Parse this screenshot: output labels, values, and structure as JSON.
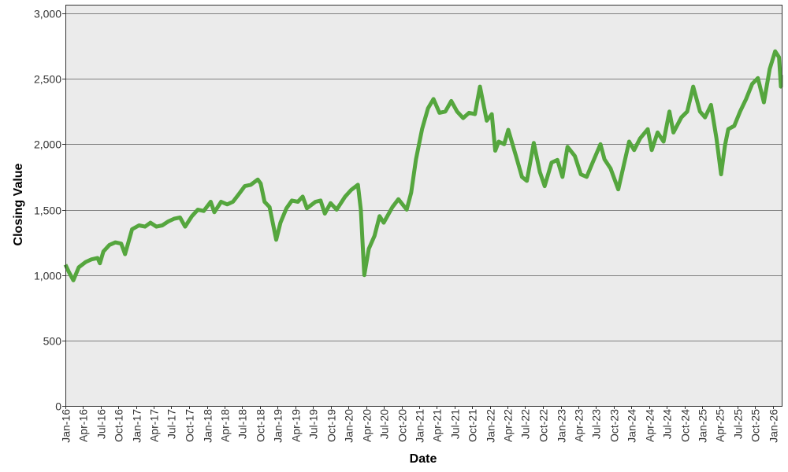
{
  "chart_data": {
    "type": "line",
    "xlabel": "Date",
    "ylabel": "Closing Value",
    "ylim": [
      0,
      3000
    ],
    "xlim": [
      "2016-01-01",
      "2026-03-01"
    ],
    "y_ticks": [
      0,
      500,
      1000,
      1500,
      2000,
      2500,
      3000
    ],
    "y_tick_labels": [
      "0",
      "500",
      "1,000",
      "1,500",
      "2,000",
      "2,500",
      "3,000"
    ],
    "x_ticks": [
      "2016-01-01",
      "2016-04-01",
      "2016-07-01",
      "2016-10-01",
      "2017-01-01",
      "2017-04-01",
      "2017-07-01",
      "2017-10-01",
      "2018-01-01",
      "2018-04-01",
      "2018-07-01",
      "2018-10-01",
      "2019-01-01",
      "2019-04-01",
      "2019-07-01",
      "2019-10-01",
      "2020-01-01",
      "2020-04-01",
      "2020-07-01",
      "2020-10-01",
      "2021-01-01",
      "2021-04-01",
      "2021-07-01",
      "2021-10-01",
      "2022-01-01",
      "2022-04-01",
      "2022-07-01",
      "2022-10-01",
      "2023-01-01",
      "2023-04-01",
      "2023-07-01",
      "2023-10-01",
      "2024-01-01",
      "2024-04-01",
      "2024-07-01",
      "2024-10-01",
      "2025-01-01",
      "2025-04-01",
      "2025-07-01",
      "2025-10-01",
      "2026-01-01"
    ],
    "x_tick_labels": [
      "Jan-16",
      "Apr-16",
      "Jul-16",
      "Oct-16",
      "Jan-17",
      "Apr-17",
      "Jul-17",
      "Oct-17",
      "Jan-18",
      "Apr-18",
      "Jul-18",
      "Oct-18",
      "Jan-19",
      "Apr-19",
      "Jul-19",
      "Oct-19",
      "Jan-20",
      "Apr-20",
      "Jul-20",
      "Oct-20",
      "Jan-21",
      "Apr-21",
      "Jul-21",
      "Oct-21",
      "Jan-22",
      "Apr-22",
      "Jul-22",
      "Oct-22",
      "Jan-23",
      "Apr-23",
      "Jul-23",
      "Oct-23",
      "Jan-24",
      "Apr-24",
      "Jul-24",
      "Oct-24",
      "Jan-25",
      "Apr-25",
      "Jul-25",
      "Oct-25",
      "Jan-26"
    ],
    "grid": "horizontal",
    "legend": "none",
    "colors": {
      "line": "#55a63e",
      "plot_background": "#ebebeb",
      "grid": "#7f7f7f"
    },
    "series": [
      {
        "x": [
          "2016-01-01",
          "2016-01-20",
          "2016-02-11",
          "2016-03-10",
          "2016-04-15",
          "2016-05-15",
          "2016-06-15",
          "2016-06-27",
          "2016-07-15",
          "2016-08-15",
          "2016-09-15",
          "2016-10-15",
          "2016-11-04",
          "2016-12-10",
          "2017-01-15",
          "2017-02-15",
          "2017-03-15",
          "2017-04-15",
          "2017-05-15",
          "2017-06-15",
          "2017-07-15",
          "2017-08-15",
          "2017-09-10",
          "2017-10-15",
          "2017-11-15",
          "2017-12-15",
          "2018-01-20",
          "2018-02-08",
          "2018-03-15",
          "2018-04-15",
          "2018-05-15",
          "2018-06-15",
          "2018-07-15",
          "2018-08-15",
          "2018-09-20",
          "2018-10-05",
          "2018-10-25",
          "2018-11-20",
          "2018-12-24",
          "2019-01-15",
          "2019-02-15",
          "2019-03-15",
          "2019-04-15",
          "2019-05-10",
          "2019-06-01",
          "2019-07-15",
          "2019-08-10",
          "2019-09-01",
          "2019-10-01",
          "2019-11-01",
          "2019-12-15",
          "2020-01-15",
          "2020-02-19",
          "2020-03-05",
          "2020-03-23",
          "2020-04-15",
          "2020-05-15",
          "2020-06-10",
          "2020-07-01",
          "2020-08-15",
          "2020-09-15",
          "2020-10-28",
          "2020-11-20",
          "2020-12-15",
          "2021-01-15",
          "2021-02-15",
          "2021-03-15",
          "2021-04-15",
          "2021-05-15",
          "2021-06-15",
          "2021-07-15",
          "2021-08-15",
          "2021-09-15",
          "2021-10-15",
          "2021-11-10",
          "2021-12-15",
          "2022-01-10",
          "2022-01-28",
          "2022-02-15",
          "2022-03-15",
          "2022-04-05",
          "2022-05-15",
          "2022-06-15",
          "2022-07-10",
          "2022-08-15",
          "2022-09-15",
          "2022-10-10",
          "2022-11-15",
          "2022-12-15",
          "2023-01-10",
          "2023-02-05",
          "2023-03-15",
          "2023-04-15",
          "2023-05-15",
          "2023-06-15",
          "2023-07-25",
          "2023-08-15",
          "2023-09-15",
          "2023-10-25",
          "2023-11-15",
          "2023-12-20",
          "2024-01-15",
          "2024-02-15",
          "2024-03-25",
          "2024-04-15",
          "2024-05-15",
          "2024-06-15",
          "2024-07-15",
          "2024-08-05",
          "2024-09-15",
          "2024-10-15",
          "2024-11-15",
          "2024-12-20",
          "2025-01-15",
          "2025-02-15",
          "2025-03-15",
          "2025-04-08",
          "2025-04-28",
          "2025-05-15",
          "2025-06-15",
          "2025-07-15",
          "2025-08-15",
          "2025-09-15",
          "2025-10-15",
          "2025-11-15",
          "2025-12-15",
          "2026-01-12",
          "2026-02-01",
          "2026-02-20",
          "2026-03-01"
        ],
        "y": [
          1080,
          1020,
          960,
          1060,
          1100,
          1120,
          1130,
          1090,
          1180,
          1230,
          1250,
          1240,
          1160,
          1350,
          1380,
          1370,
          1400,
          1370,
          1380,
          1410,
          1430,
          1440,
          1370,
          1450,
          1500,
          1490,
          1560,
          1480,
          1560,
          1540,
          1560,
          1620,
          1680,
          1690,
          1730,
          1700,
          1560,
          1520,
          1270,
          1400,
          1510,
          1570,
          1560,
          1600,
          1510,
          1560,
          1570,
          1470,
          1550,
          1500,
          1600,
          1650,
          1690,
          1500,
          1000,
          1200,
          1300,
          1450,
          1400,
          1520,
          1580,
          1500,
          1630,
          1885,
          2115,
          2275,
          2345,
          2240,
          2250,
          2330,
          2250,
          2200,
          2240,
          2230,
          2440,
          2180,
          2230,
          1950,
          2020,
          2000,
          2110,
          1910,
          1750,
          1720,
          2010,
          1790,
          1680,
          1860,
          1880,
          1750,
          1980,
          1910,
          1770,
          1750,
          1860,
          2000,
          1885,
          1815,
          1655,
          1790,
          2020,
          1955,
          2045,
          2115,
          1955,
          2090,
          2020,
          2250,
          2090,
          2205,
          2250,
          2440,
          2250,
          2205,
          2300,
          2045,
          1770,
          1990,
          2115,
          2140,
          2250,
          2345,
          2460,
          2505,
          2320,
          2575,
          2710,
          2665,
          2440,
          2530
        ]
      }
    ]
  }
}
